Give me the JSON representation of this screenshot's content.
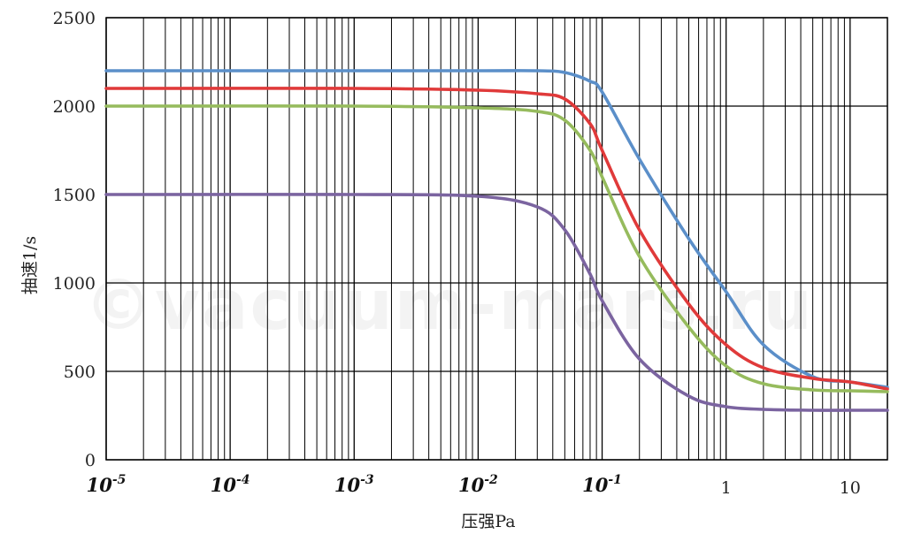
{
  "chart_data": {
    "type": "line",
    "xscale": "log",
    "xlim": [
      1e-05,
      20
    ],
    "ylim": [
      0,
      2500
    ],
    "yticks": [
      0,
      500,
      1000,
      1500,
      2000,
      2500
    ],
    "ytick_labels": [
      "0",
      "500",
      "1000",
      "1500",
      "2000",
      "2500"
    ],
    "xticks": [
      {
        "value": 1e-05,
        "base": "10",
        "exp": "-5"
      },
      {
        "value": 0.0001,
        "base": "10",
        "exp": "-4"
      },
      {
        "value": 0.001,
        "base": "10",
        "exp": "-3"
      },
      {
        "value": 0.01,
        "base": "10",
        "exp": "-2"
      },
      {
        "value": 0.1,
        "base": "10",
        "exp": "-1"
      },
      {
        "value": 1,
        "label": "1"
      },
      {
        "value": 10,
        "label": "10"
      }
    ],
    "xlabel": "压强Pa",
    "ylabel": "抽速1/s",
    "grid": true,
    "series": [
      {
        "color": "#5b8fc9",
        "x": [
          1e-05,
          0.001,
          0.01,
          0.03,
          0.05,
          0.08,
          0.1,
          0.2,
          0.5,
          1,
          2,
          5,
          10,
          20
        ],
        "y": [
          2200,
          2200,
          2200,
          2200,
          2190,
          2140,
          2080,
          1700,
          1250,
          950,
          650,
          470,
          440,
          410
        ]
      },
      {
        "color": "#e03a3a",
        "x": [
          1e-05,
          0.001,
          0.01,
          0.03,
          0.05,
          0.08,
          0.1,
          0.2,
          0.5,
          1,
          2,
          5,
          10,
          20
        ],
        "y": [
          2100,
          2100,
          2090,
          2070,
          2040,
          1900,
          1750,
          1300,
          880,
          650,
          520,
          460,
          440,
          400
        ]
      },
      {
        "color": "#96bb5d",
        "x": [
          1e-05,
          0.001,
          0.01,
          0.03,
          0.05,
          0.08,
          0.1,
          0.2,
          0.5,
          1,
          2,
          5,
          10,
          20
        ],
        "y": [
          2000,
          2000,
          1990,
          1970,
          1920,
          1750,
          1600,
          1150,
          750,
          530,
          430,
          395,
          390,
          385
        ]
      },
      {
        "color": "#7b64a0",
        "x": [
          1e-05,
          0.001,
          0.01,
          0.03,
          0.05,
          0.08,
          0.1,
          0.2,
          0.5,
          1,
          2,
          5,
          10,
          20
        ],
        "y": [
          1500,
          1500,
          1490,
          1430,
          1300,
          1050,
          900,
          570,
          360,
          300,
          285,
          280,
          280,
          280
        ]
      }
    ]
  },
  "watermark": "©vacuum-mars.ru",
  "colors": {
    "grid": "#000000",
    "background": "#ffffff"
  }
}
